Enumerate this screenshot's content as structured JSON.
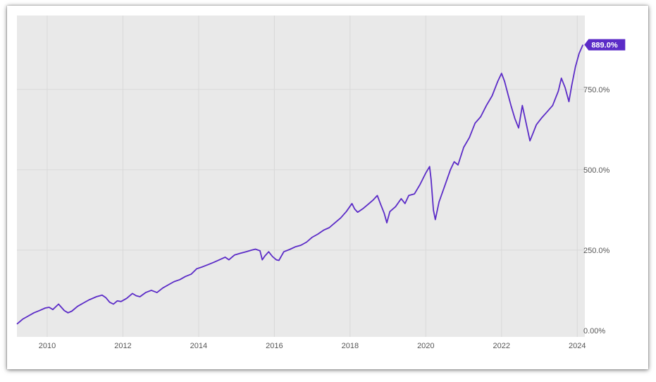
{
  "chart_data": {
    "type": "line",
    "title": "",
    "xlabel": "",
    "ylabel": "",
    "grid": true,
    "legend": "none",
    "xlim": [
      2009.2,
      2024.2
    ],
    "ylim": [
      -20,
      980
    ],
    "x_ticks": [
      2010,
      2012,
      2014,
      2016,
      2018,
      2020,
      2022,
      2024
    ],
    "x_tick_labels": [
      "2010",
      "2012",
      "2014",
      "2016",
      "2018",
      "2020",
      "2022",
      "2024"
    ],
    "y_ticks": [
      0,
      250,
      500,
      750
    ],
    "y_tick_labels": [
      "0.00%",
      "250.0%",
      "500.0%",
      "750.0%"
    ],
    "end_label": "889.0%",
    "colors": {
      "line": "#5b2bc7",
      "end_badge": "#5b2bc7",
      "plot_bg": "#e9e9e9",
      "grid": "#d9d9d9"
    },
    "series": [
      {
        "points": [
          [
            2009.2,
            20
          ],
          [
            2009.35,
            35
          ],
          [
            2009.5,
            45
          ],
          [
            2009.65,
            55
          ],
          [
            2009.8,
            62
          ],
          [
            2009.95,
            70
          ],
          [
            2010.05,
            72
          ],
          [
            2010.15,
            65
          ],
          [
            2010.3,
            82
          ],
          [
            2010.45,
            62
          ],
          [
            2010.55,
            55
          ],
          [
            2010.65,
            60
          ],
          [
            2010.8,
            75
          ],
          [
            2010.95,
            85
          ],
          [
            2011.1,
            95
          ],
          [
            2011.3,
            105
          ],
          [
            2011.45,
            110
          ],
          [
            2011.55,
            102
          ],
          [
            2011.65,
            88
          ],
          [
            2011.75,
            82
          ],
          [
            2011.85,
            92
          ],
          [
            2011.95,
            90
          ],
          [
            2012.1,
            100
          ],
          [
            2012.25,
            115
          ],
          [
            2012.35,
            108
          ],
          [
            2012.45,
            105
          ],
          [
            2012.6,
            118
          ],
          [
            2012.75,
            125
          ],
          [
            2012.9,
            118
          ],
          [
            2013.05,
            132
          ],
          [
            2013.2,
            142
          ],
          [
            2013.35,
            152
          ],
          [
            2013.5,
            158
          ],
          [
            2013.65,
            168
          ],
          [
            2013.8,
            175
          ],
          [
            2013.95,
            192
          ],
          [
            2014.1,
            198
          ],
          [
            2014.25,
            205
          ],
          [
            2014.4,
            212
          ],
          [
            2014.55,
            220
          ],
          [
            2014.7,
            228
          ],
          [
            2014.8,
            220
          ],
          [
            2014.95,
            235
          ],
          [
            2015.1,
            240
          ],
          [
            2015.25,
            245
          ],
          [
            2015.4,
            250
          ],
          [
            2015.5,
            253
          ],
          [
            2015.62,
            248
          ],
          [
            2015.68,
            220
          ],
          [
            2015.75,
            232
          ],
          [
            2015.85,
            245
          ],
          [
            2015.95,
            230
          ],
          [
            2016.05,
            220
          ],
          [
            2016.12,
            218
          ],
          [
            2016.25,
            245
          ],
          [
            2016.4,
            252
          ],
          [
            2016.55,
            260
          ],
          [
            2016.7,
            265
          ],
          [
            2016.85,
            275
          ],
          [
            2017.0,
            290
          ],
          [
            2017.15,
            300
          ],
          [
            2017.3,
            312
          ],
          [
            2017.45,
            320
          ],
          [
            2017.6,
            335
          ],
          [
            2017.75,
            350
          ],
          [
            2017.9,
            370
          ],
          [
            2018.05,
            395
          ],
          [
            2018.12,
            378
          ],
          [
            2018.2,
            368
          ],
          [
            2018.35,
            380
          ],
          [
            2018.5,
            395
          ],
          [
            2018.6,
            405
          ],
          [
            2018.72,
            420
          ],
          [
            2018.8,
            395
          ],
          [
            2018.9,
            365
          ],
          [
            2018.97,
            335
          ],
          [
            2019.05,
            370
          ],
          [
            2019.2,
            385
          ],
          [
            2019.35,
            410
          ],
          [
            2019.45,
            395
          ],
          [
            2019.55,
            420
          ],
          [
            2019.7,
            425
          ],
          [
            2019.85,
            455
          ],
          [
            2020.0,
            490
          ],
          [
            2020.1,
            510
          ],
          [
            2020.14,
            470
          ],
          [
            2020.2,
            375
          ],
          [
            2020.25,
            345
          ],
          [
            2020.35,
            400
          ],
          [
            2020.5,
            450
          ],
          [
            2020.65,
            500
          ],
          [
            2020.75,
            525
          ],
          [
            2020.85,
            515
          ],
          [
            2021.0,
            570
          ],
          [
            2021.15,
            600
          ],
          [
            2021.3,
            645
          ],
          [
            2021.45,
            665
          ],
          [
            2021.6,
            700
          ],
          [
            2021.75,
            730
          ],
          [
            2021.9,
            775
          ],
          [
            2022.0,
            800
          ],
          [
            2022.08,
            775
          ],
          [
            2022.18,
            730
          ],
          [
            2022.25,
            700
          ],
          [
            2022.35,
            660
          ],
          [
            2022.45,
            630
          ],
          [
            2022.55,
            700
          ],
          [
            2022.65,
            645
          ],
          [
            2022.75,
            590
          ],
          [
            2022.82,
            610
          ],
          [
            2022.92,
            640
          ],
          [
            2023.05,
            660
          ],
          [
            2023.2,
            680
          ],
          [
            2023.35,
            700
          ],
          [
            2023.5,
            745
          ],
          [
            2023.58,
            785
          ],
          [
            2023.68,
            755
          ],
          [
            2023.78,
            712
          ],
          [
            2023.85,
            760
          ],
          [
            2023.95,
            820
          ],
          [
            2024.05,
            862
          ],
          [
            2024.15,
            889
          ]
        ]
      }
    ]
  }
}
